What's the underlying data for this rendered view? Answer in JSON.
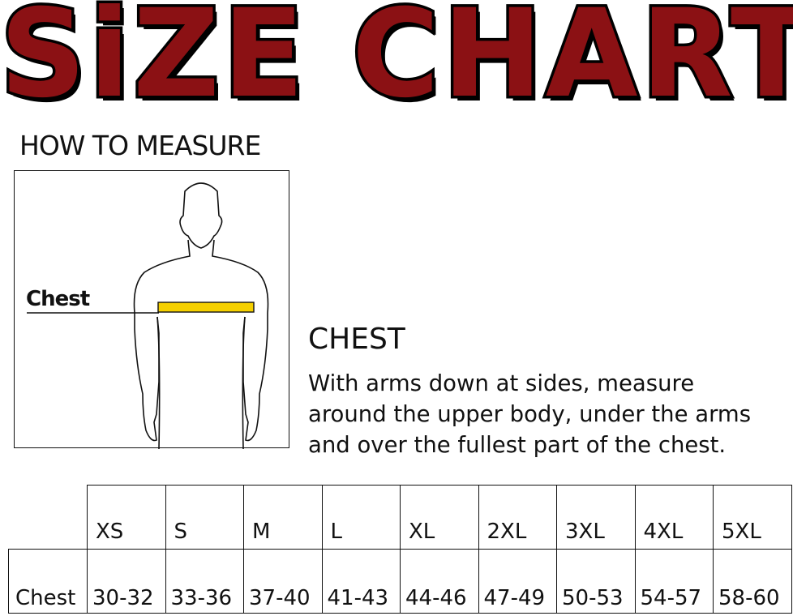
{
  "title": "SiZE CHART",
  "how_to_measure": "HOW TO MEASURE",
  "figure": {
    "chest_label": "Chest",
    "tape_color": "#f5d000"
  },
  "chest_section": {
    "heading": "CHEST",
    "lines": [
      "With arms down at sides, measure",
      "around the upper body, under the arms",
      "and over the fullest part of the chest."
    ]
  },
  "title_color": "#8b1114",
  "table": {
    "sizes": [
      "XS",
      "S",
      "M",
      "L",
      "XL",
      "2XL",
      "3XL",
      "4XL",
      "5XL"
    ],
    "rows": [
      {
        "label": "Chest",
        "values": [
          "30-32",
          "33-36",
          "37-40",
          "41-43",
          "44-46",
          "47-49",
          "50-53",
          "54-57",
          "58-60"
        ]
      }
    ]
  }
}
